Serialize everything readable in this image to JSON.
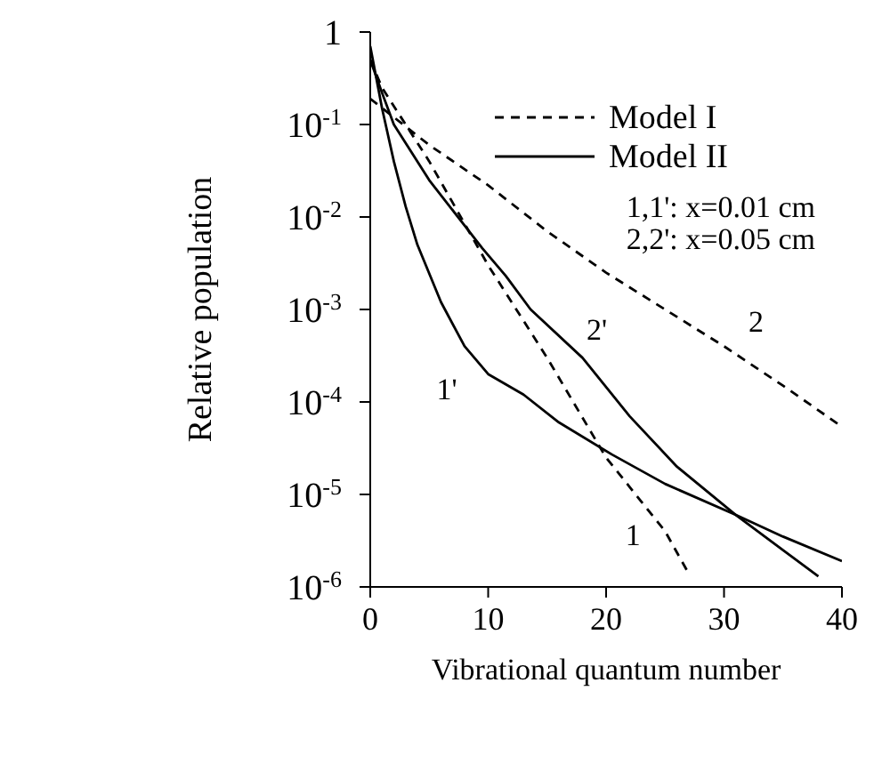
{
  "chart_data": {
    "type": "line",
    "xlabel": "Vibrational quantum number",
    "ylabel": "Relative population",
    "log": "y",
    "xlim": [
      0,
      40
    ],
    "xticks": [
      0,
      10,
      20,
      30,
      40
    ],
    "ylim": [
      1e-06,
      1
    ],
    "yticks": [
      {
        "value": 1,
        "label": "1"
      },
      {
        "value": 0.1,
        "label": "10$^{-1}$"
      },
      {
        "value": 0.01,
        "label": "10$^{-2}$"
      },
      {
        "value": 0.001,
        "label": "10$^{-3}$"
      },
      {
        "value": 0.0001,
        "label": "10$^{-4}$"
      },
      {
        "value": 1e-05,
        "label": "10$^{-5}$"
      },
      {
        "value": 1e-06,
        "label": "10$^{-6}$"
      }
    ],
    "grid": false,
    "marker": "none",
    "series": [
      {
        "name": "1",
        "color": "#000000",
        "line_style": "dashed",
        "x": [
          0,
          1,
          5,
          10,
          15,
          20,
          25,
          27
        ],
        "values": [
          0.5,
          0.25,
          0.04,
          0.003,
          0.0003,
          2.5e-05,
          4e-06,
          1.4e-06
        ]
      },
      {
        "name": "2",
        "color": "#000000",
        "line_style": "dashed",
        "x": [
          0,
          5,
          10,
          15,
          20,
          25,
          30,
          35,
          40
        ],
        "values": [
          0.19,
          0.06,
          0.022,
          0.007,
          0.0025,
          0.001,
          0.0004,
          0.00015,
          5.4e-05
        ]
      },
      {
        "name": "1'",
        "color": "#000000",
        "line_style": "solid",
        "x": [
          0,
          1,
          2,
          3,
          4,
          6,
          8,
          10,
          13,
          16,
          20.5,
          25,
          31,
          35,
          40
        ],
        "values": [
          0.7,
          0.15,
          0.04,
          0.013,
          0.005,
          0.0012,
          0.0004,
          0.0002,
          0.00012,
          6e-05,
          2.7e-05,
          1.3e-05,
          6e-06,
          3.5e-06,
          1.9e-06
        ]
      },
      {
        "name": "2'",
        "color": "#000000",
        "line_style": "solid",
        "x": [
          0,
          1,
          2,
          5,
          9.5,
          11.5,
          13.6,
          18,
          22,
          26,
          31,
          35,
          38
        ],
        "values": [
          0.5,
          0.22,
          0.1,
          0.025,
          0.0046,
          0.0023,
          0.001,
          0.0003,
          7e-05,
          2e-05,
          6e-06,
          2.5e-06,
          1.3e-06
        ]
      }
    ],
    "annotations": [
      "Model I",
      "Model II",
      "1,1': x=0.01 cm",
      "2,2': x=0.05 cm"
    ]
  }
}
